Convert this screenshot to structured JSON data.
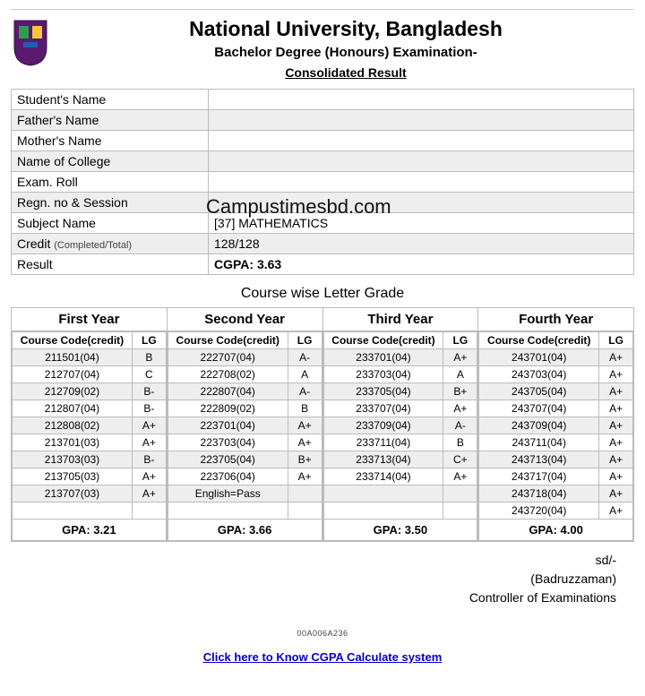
{
  "header": {
    "university": "National University, Bangladesh",
    "degree": "Bachelor Degree (Honours) Examination-",
    "result_title": "Consolidated Result"
  },
  "info": {
    "student_label": "Student's Name",
    "student_value": "",
    "father_label": "Father's Name",
    "father_value": "",
    "mother_label": "Mother's Name",
    "mother_value": "",
    "college_label": "Name of College",
    "college_value": "",
    "roll_label": "Exam. Roll",
    "roll_value": "",
    "regn_label": "Regn. no & Session",
    "regn_value": "",
    "subject_label": "Subject Name",
    "subject_value": "[37] MATHEMATICS",
    "credit_label": "Credit",
    "credit_sub": "(Completed/Total)",
    "credit_value": "128/128",
    "result_label": "Result",
    "result_value": "CGPA: 3.63"
  },
  "section_title": "Course wise Letter Grade",
  "years": [
    {
      "title": "First Year",
      "col_cc": "Course Code(credit)",
      "col_lg": "LG",
      "rows": [
        {
          "cc": "211501(04)",
          "lg": "B"
        },
        {
          "cc": "212707(04)",
          "lg": "C"
        },
        {
          "cc": "212709(02)",
          "lg": "B-"
        },
        {
          "cc": "212807(04)",
          "lg": "B-"
        },
        {
          "cc": "212808(02)",
          "lg": "A+"
        },
        {
          "cc": "213701(03)",
          "lg": "A+"
        },
        {
          "cc": "213703(03)",
          "lg": "B-"
        },
        {
          "cc": "213705(03)",
          "lg": "A+"
        },
        {
          "cc": "213707(03)",
          "lg": "A+"
        },
        {
          "cc": "",
          "lg": ""
        }
      ],
      "gpa": "GPA: 3.21"
    },
    {
      "title": "Second Year",
      "col_cc": "Course Code(credit)",
      "col_lg": "LG",
      "rows": [
        {
          "cc": "222707(04)",
          "lg": "A-"
        },
        {
          "cc": "222708(02)",
          "lg": "A"
        },
        {
          "cc": "222807(04)",
          "lg": "A-"
        },
        {
          "cc": "222809(02)",
          "lg": "B"
        },
        {
          "cc": "223701(04)",
          "lg": "A+"
        },
        {
          "cc": "223703(04)",
          "lg": "A+"
        },
        {
          "cc": "223705(04)",
          "lg": "B+"
        },
        {
          "cc": "223706(04)",
          "lg": "A+"
        },
        {
          "cc": "English=Pass",
          "lg": ""
        },
        {
          "cc": "",
          "lg": ""
        }
      ],
      "gpa": "GPA: 3.66"
    },
    {
      "title": "Third Year",
      "col_cc": "Course Code(credit)",
      "col_lg": "LG",
      "rows": [
        {
          "cc": "233701(04)",
          "lg": "A+"
        },
        {
          "cc": "233703(04)",
          "lg": "A"
        },
        {
          "cc": "233705(04)",
          "lg": "B+"
        },
        {
          "cc": "233707(04)",
          "lg": "A+"
        },
        {
          "cc": "233709(04)",
          "lg": "A-"
        },
        {
          "cc": "233711(04)",
          "lg": "B"
        },
        {
          "cc": "233713(04)",
          "lg": "C+"
        },
        {
          "cc": "233714(04)",
          "lg": "A+"
        },
        {
          "cc": "",
          "lg": ""
        },
        {
          "cc": "",
          "lg": ""
        }
      ],
      "gpa": "GPA: 3.50"
    },
    {
      "title": "Fourth Year",
      "col_cc": "Course Code(credit)",
      "col_lg": "LG",
      "rows": [
        {
          "cc": "243701(04)",
          "lg": "A+"
        },
        {
          "cc": "243703(04)",
          "lg": "A+"
        },
        {
          "cc": "243705(04)",
          "lg": "A+"
        },
        {
          "cc": "243707(04)",
          "lg": "A+"
        },
        {
          "cc": "243709(04)",
          "lg": "A+"
        },
        {
          "cc": "243711(04)",
          "lg": "A+"
        },
        {
          "cc": "243713(04)",
          "lg": "A+"
        },
        {
          "cc": "243717(04)",
          "lg": "A+"
        },
        {
          "cc": "243718(04)",
          "lg": "A+"
        },
        {
          "cc": "243720(04)",
          "lg": "A+"
        }
      ],
      "gpa": "GPA: 4.00"
    }
  ],
  "signature": {
    "sd": "sd/-",
    "name": "(Badruzzaman)",
    "title": "Controller of Examinations"
  },
  "docid": "00A006A236",
  "link_text": "Click here to Know CGPA Calculate system",
  "watermark": "Campustimesbd.com"
}
